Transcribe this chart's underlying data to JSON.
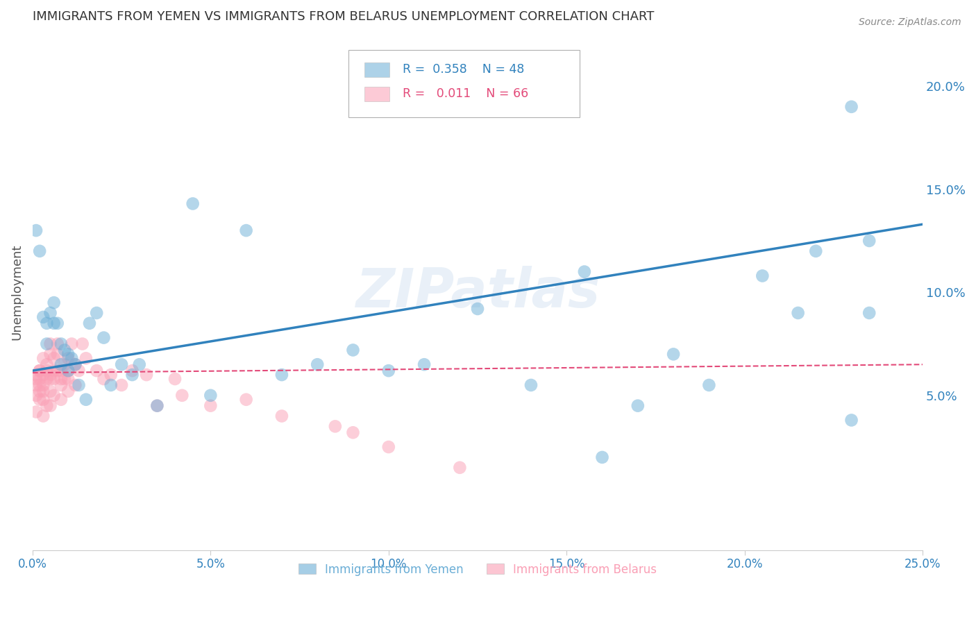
{
  "title": "IMMIGRANTS FROM YEMEN VS IMMIGRANTS FROM BELARUS UNEMPLOYMENT CORRELATION CHART",
  "source": "Source: ZipAtlas.com",
  "ylabel": "Unemployment",
  "xlim": [
    0.0,
    0.25
  ],
  "ylim": [
    -0.025,
    0.225
  ],
  "xticks": [
    0.0,
    0.05,
    0.1,
    0.15,
    0.2,
    0.25
  ],
  "yticks": [
    0.05,
    0.1,
    0.15,
    0.2
  ],
  "ytick_labels": [
    "5.0%",
    "10.0%",
    "15.0%",
    "20.0%"
  ],
  "xtick_labels": [
    "0.0%",
    "5.0%",
    "10.0%",
    "15.0%",
    "20.0%",
    "25.0%"
  ],
  "legend_r_yemen": "0.358",
  "legend_n_yemen": "48",
  "legend_r_belarus": "0.011",
  "legend_n_belarus": "66",
  "watermark": "ZIPatlas",
  "blue_color": "#6baed6",
  "pink_color": "#fa9fb5",
  "trend_blue": "#3182bd",
  "trend_pink": "#e34a79",
  "grid_color": "#c8c8c8",
  "title_color": "#333333",
  "axis_label_color": "#3182bd",
  "yemen_trend_x0": 0.0,
  "yemen_trend_y0": 0.062,
  "yemen_trend_x1": 0.25,
  "yemen_trend_y1": 0.133,
  "belarus_trend_x0": 0.0,
  "belarus_trend_y0": 0.061,
  "belarus_trend_x1": 0.25,
  "belarus_trend_y1": 0.065,
  "yemen_x": [
    0.001,
    0.002,
    0.003,
    0.004,
    0.004,
    0.005,
    0.006,
    0.006,
    0.007,
    0.008,
    0.008,
    0.009,
    0.01,
    0.01,
    0.011,
    0.012,
    0.013,
    0.015,
    0.016,
    0.018,
    0.02,
    0.022,
    0.025,
    0.028,
    0.03,
    0.035,
    0.045,
    0.05,
    0.06,
    0.07,
    0.08,
    0.09,
    0.1,
    0.11,
    0.125,
    0.14,
    0.155,
    0.16,
    0.17,
    0.18,
    0.19,
    0.205,
    0.215,
    0.22,
    0.23,
    0.23,
    0.235,
    0.235
  ],
  "yemen_y": [
    0.13,
    0.12,
    0.088,
    0.085,
    0.075,
    0.09,
    0.085,
    0.095,
    0.085,
    0.065,
    0.075,
    0.072,
    0.062,
    0.07,
    0.068,
    0.065,
    0.055,
    0.048,
    0.085,
    0.09,
    0.078,
    0.055,
    0.065,
    0.06,
    0.065,
    0.045,
    0.143,
    0.05,
    0.13,
    0.06,
    0.065,
    0.072,
    0.062,
    0.065,
    0.092,
    0.055,
    0.11,
    0.02,
    0.045,
    0.07,
    0.055,
    0.108,
    0.09,
    0.12,
    0.19,
    0.038,
    0.125,
    0.09
  ],
  "belarus_x": [
    0.001,
    0.001,
    0.001,
    0.001,
    0.001,
    0.002,
    0.002,
    0.002,
    0.002,
    0.002,
    0.002,
    0.003,
    0.003,
    0.003,
    0.003,
    0.003,
    0.003,
    0.004,
    0.004,
    0.004,
    0.004,
    0.005,
    0.005,
    0.005,
    0.005,
    0.005,
    0.005,
    0.006,
    0.006,
    0.006,
    0.006,
    0.007,
    0.007,
    0.007,
    0.008,
    0.008,
    0.008,
    0.008,
    0.009,
    0.009,
    0.01,
    0.01,
    0.01,
    0.01,
    0.011,
    0.012,
    0.012,
    0.013,
    0.014,
    0.015,
    0.018,
    0.02,
    0.022,
    0.025,
    0.028,
    0.032,
    0.035,
    0.04,
    0.042,
    0.05,
    0.06,
    0.07,
    0.085,
    0.09,
    0.1,
    0.12
  ],
  "belarus_y": [
    0.06,
    0.055,
    0.05,
    0.058,
    0.042,
    0.062,
    0.058,
    0.055,
    0.048,
    0.052,
    0.062,
    0.068,
    0.06,
    0.055,
    0.052,
    0.048,
    0.04,
    0.065,
    0.062,
    0.058,
    0.045,
    0.075,
    0.07,
    0.06,
    0.058,
    0.052,
    0.045,
    0.068,
    0.062,
    0.058,
    0.05,
    0.075,
    0.07,
    0.062,
    0.062,
    0.058,
    0.055,
    0.048,
    0.065,
    0.058,
    0.068,
    0.062,
    0.058,
    0.052,
    0.075,
    0.065,
    0.055,
    0.062,
    0.075,
    0.068,
    0.062,
    0.058,
    0.06,
    0.055,
    0.062,
    0.06,
    0.045,
    0.058,
    0.05,
    0.045,
    0.048,
    0.04,
    0.035,
    0.032,
    0.025,
    0.015
  ]
}
